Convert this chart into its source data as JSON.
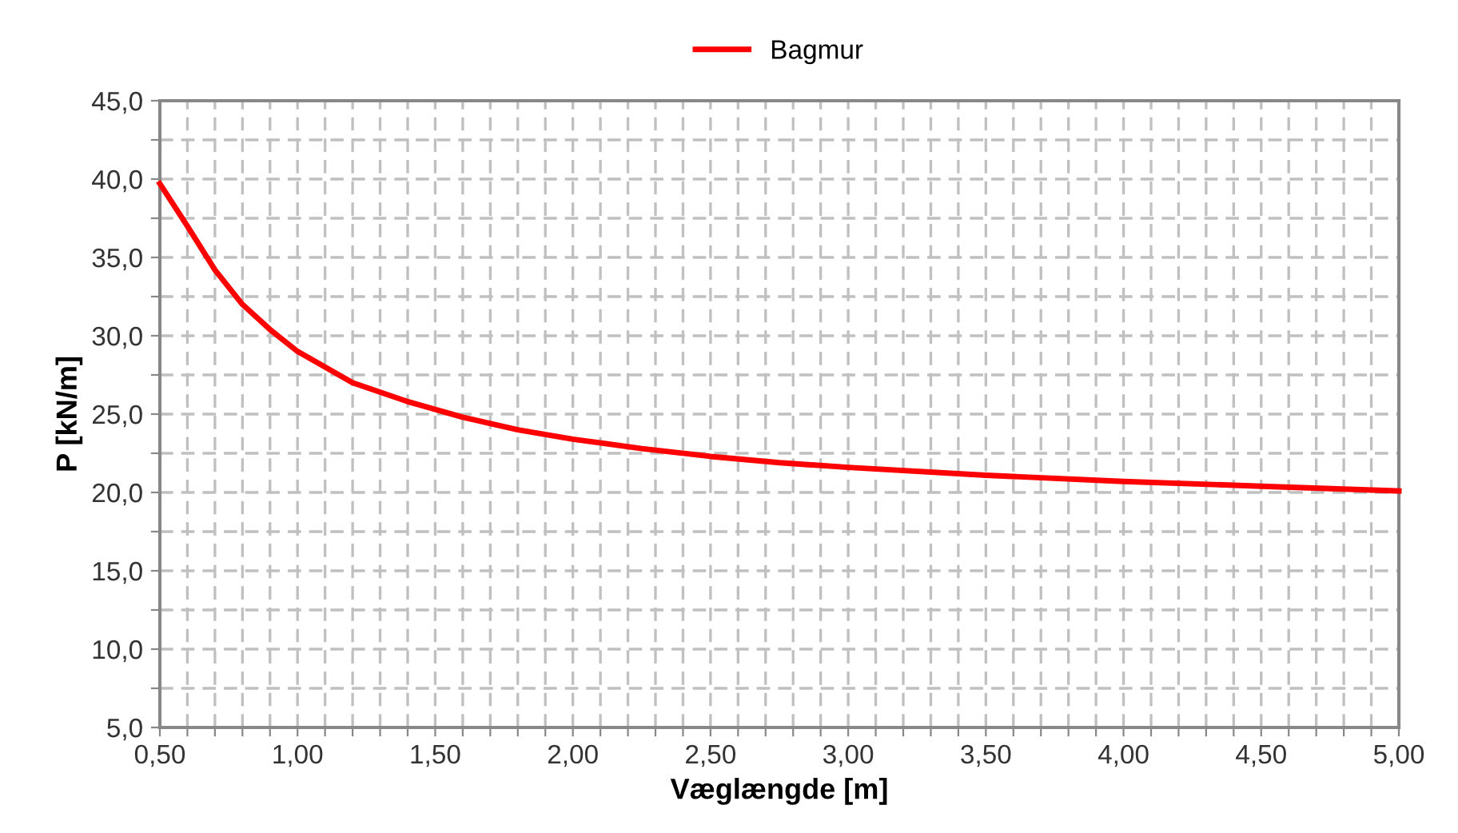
{
  "chart_data": {
    "type": "line",
    "xlabel": "Væglængde [m]",
    "ylabel": "P [kN/m]",
    "x": [
      0.5,
      0.6,
      0.7,
      0.8,
      0.9,
      1.0,
      1.2,
      1.4,
      1.6,
      1.8,
      2.0,
      2.25,
      2.5,
      2.75,
      3.0,
      3.5,
      4.0,
      4.5,
      5.0
    ],
    "series": [
      {
        "name": "Bagmur",
        "color": "#ff0000",
        "values": [
          39.7,
          37.0,
          34.2,
          32.0,
          30.4,
          29.0,
          27.0,
          25.8,
          24.8,
          24.0,
          23.4,
          22.8,
          22.3,
          21.9,
          21.6,
          21.1,
          20.7,
          20.4,
          20.1
        ]
      }
    ],
    "xlim": [
      0.5,
      5.0
    ],
    "ylim": [
      5,
      45
    ],
    "xticks": [
      {
        "value": 0.5,
        "label": "0,50"
      },
      {
        "value": 0.6,
        "label": null
      },
      {
        "value": 0.7,
        "label": null
      },
      {
        "value": 0.8,
        "label": null
      },
      {
        "value": 0.9,
        "label": null
      },
      {
        "value": 1.0,
        "label": "1,00"
      },
      {
        "value": 1.1,
        "label": null
      },
      {
        "value": 1.2,
        "label": null
      },
      {
        "value": 1.3,
        "label": null
      },
      {
        "value": 1.4,
        "label": null
      },
      {
        "value": 1.5,
        "label": "1,50"
      },
      {
        "value": 1.6,
        "label": null
      },
      {
        "value": 1.7,
        "label": null
      },
      {
        "value": 1.8,
        "label": null
      },
      {
        "value": 1.9,
        "label": null
      },
      {
        "value": 2.0,
        "label": "2,00"
      },
      {
        "value": 2.1,
        "label": null
      },
      {
        "value": 2.2,
        "label": null
      },
      {
        "value": 2.3,
        "label": null
      },
      {
        "value": 2.4,
        "label": null
      },
      {
        "value": 2.5,
        "label": "2,50"
      },
      {
        "value": 2.6,
        "label": null
      },
      {
        "value": 2.7,
        "label": null
      },
      {
        "value": 2.8,
        "label": null
      },
      {
        "value": 2.9,
        "label": null
      },
      {
        "value": 3.0,
        "label": "3,00"
      },
      {
        "value": 3.1,
        "label": null
      },
      {
        "value": 3.2,
        "label": null
      },
      {
        "value": 3.3,
        "label": null
      },
      {
        "value": 3.4,
        "label": null
      },
      {
        "value": 3.5,
        "label": "3,50"
      },
      {
        "value": 3.6,
        "label": null
      },
      {
        "value": 3.7,
        "label": null
      },
      {
        "value": 3.8,
        "label": null
      },
      {
        "value": 3.9,
        "label": null
      },
      {
        "value": 4.0,
        "label": "4,00"
      },
      {
        "value": 4.1,
        "label": null
      },
      {
        "value": 4.2,
        "label": null
      },
      {
        "value": 4.3,
        "label": null
      },
      {
        "value": 4.4,
        "label": null
      },
      {
        "value": 4.5,
        "label": "4,50"
      },
      {
        "value": 4.6,
        "label": null
      },
      {
        "value": 4.7,
        "label": null
      },
      {
        "value": 4.8,
        "label": null
      },
      {
        "value": 4.9,
        "label": null
      },
      {
        "value": 5.0,
        "label": "5,00"
      }
    ],
    "yticks": [
      {
        "value": 5,
        "label": "5,0"
      },
      {
        "value": 7.5,
        "label": null
      },
      {
        "value": 10,
        "label": "10,0"
      },
      {
        "value": 12.5,
        "label": null
      },
      {
        "value": 15,
        "label": "15,0"
      },
      {
        "value": 17.5,
        "label": null
      },
      {
        "value": 20,
        "label": "20,0"
      },
      {
        "value": 22.5,
        "label": null
      },
      {
        "value": 25,
        "label": "25,0"
      },
      {
        "value": 27.5,
        "label": null
      },
      {
        "value": 30,
        "label": "30,0"
      },
      {
        "value": 32.5,
        "label": null
      },
      {
        "value": 35,
        "label": "35,0"
      },
      {
        "value": 37.5,
        "label": null
      },
      {
        "value": 40,
        "label": "40,0"
      },
      {
        "value": 42.5,
        "label": null
      },
      {
        "value": 45,
        "label": "45,0"
      }
    ],
    "grid": true,
    "legend": "top",
    "marker": "none",
    "line_style": "solid"
  }
}
